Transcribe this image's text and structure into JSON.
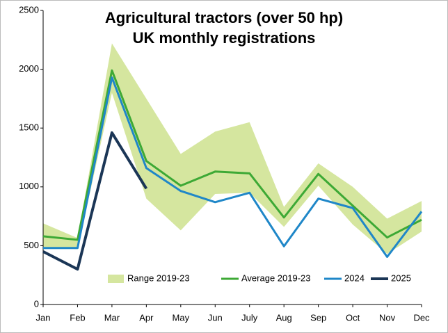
{
  "chart_data": {
    "type": "line",
    "title": [
      "Agricultural tractors (over 50 hp)",
      "UK monthly registrations"
    ],
    "categories": [
      "Jan",
      "Feb",
      "Mar",
      "Apr",
      "May",
      "Jun",
      "July",
      "Aug",
      "Sep",
      "Oct",
      "Nov",
      "Dec"
    ],
    "band": {
      "name": "Range 2019-23",
      "color": "#d5e69f",
      "high": [
        690,
        565,
        2220,
        1750,
        1280,
        1470,
        1550,
        830,
        1200,
        1000,
        730,
        880
      ],
      "low": [
        490,
        470,
        1800,
        900,
        630,
        940,
        950,
        660,
        1010,
        680,
        430,
        620
      ]
    },
    "series": [
      {
        "name": "Average 2019-23",
        "color": "#3da935",
        "values": [
          580,
          550,
          1990,
          1220,
          1010,
          1130,
          1115,
          740,
          1110,
          840,
          570,
          720
        ]
      },
      {
        "name": "2024",
        "color": "#1f87c8",
        "values": [
          480,
          480,
          1930,
          1160,
          965,
          870,
          950,
          495,
          900,
          820,
          405,
          790
        ]
      },
      {
        "name": "2025",
        "color": "#1b3656",
        "values": [
          450,
          300,
          1460,
          985,
          null,
          null,
          null,
          null,
          null,
          null,
          null,
          null
        ]
      }
    ],
    "ylim": [
      0,
      2500
    ],
    "yticks": [
      0,
      500,
      1000,
      1500,
      2000,
      2500
    ],
    "grid": false,
    "legend": "bottom"
  }
}
